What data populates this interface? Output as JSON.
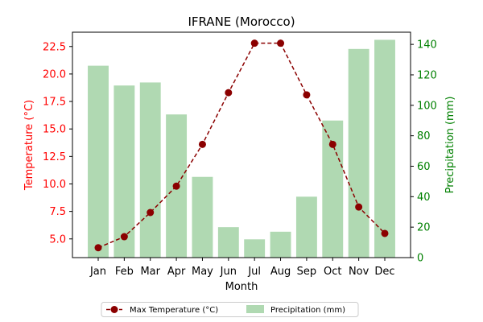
{
  "chart_data": {
    "type": "bar+line",
    "title": "IFRANE (Morocco)",
    "xlabel": "Month",
    "ylabel_left": "Temperature (°C)",
    "ylabel_right": "Precipitation (mm)",
    "categories": [
      "Jan",
      "Feb",
      "Mar",
      "Apr",
      "May",
      "Jun",
      "Jul",
      "Aug",
      "Sep",
      "Oct",
      "Nov",
      "Dec"
    ],
    "ylim_left": [
      3.3,
      23.8
    ],
    "ylim_right": [
      0,
      148
    ],
    "yticks_left": [
      "5.0",
      "7.5",
      "10.0",
      "12.5",
      "15.0",
      "17.5",
      "20.0",
      "22.5"
    ],
    "yticks_right": [
      "0",
      "20",
      "40",
      "60",
      "80",
      "100",
      "120",
      "140"
    ],
    "series": [
      {
        "name": "Max Temperature (°C)",
        "type": "line",
        "axis": "left",
        "color": "#8b0000",
        "style": "dashed",
        "marker": "circle",
        "values": [
          4.2,
          5.2,
          7.4,
          9.8,
          13.6,
          18.3,
          22.8,
          22.8,
          18.1,
          13.6,
          7.9,
          5.5
        ]
      },
      {
        "name": "Precipitation (mm)",
        "type": "bar",
        "axis": "right",
        "color": "#b0d9b2",
        "values": [
          126,
          113,
          115,
          94,
          53,
          20,
          12,
          17,
          40,
          90,
          137,
          143
        ]
      }
    ],
    "legend": {
      "placement": "bottom-center",
      "columns": 2
    },
    "colors": {
      "left_axis": "#ff0000",
      "right_axis": "#008000"
    },
    "grid": false
  }
}
